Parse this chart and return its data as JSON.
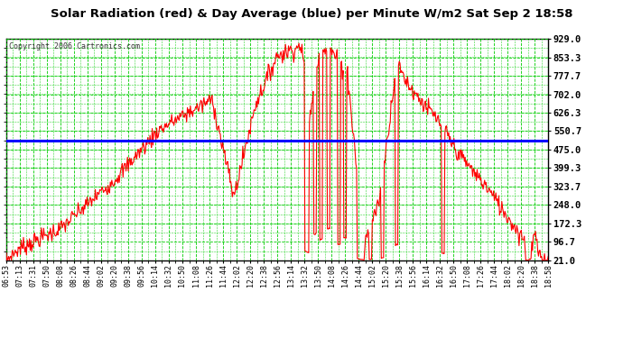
{
  "title": "Solar Radiation (red) & Day Average (blue) per Minute W/m2 Sat Sep 2 18:58",
  "copyright": "Copyright 2006 Cartronics.com",
  "background_color": "#ffffff",
  "plot_bg_color": "#ffffff",
  "grid_color": "#00cc00",
  "line_color": "#ff0000",
  "avg_line_color": "#0000ff",
  "avg_value": 510.0,
  "y_ticks": [
    21.0,
    96.7,
    172.3,
    248.0,
    323.7,
    399.3,
    475.0,
    550.7,
    626.3,
    702.0,
    777.7,
    853.3,
    929.0
  ],
  "x_labels": [
    "06:53",
    "07:13",
    "07:31",
    "07:50",
    "08:08",
    "08:26",
    "08:44",
    "09:02",
    "09:20",
    "09:38",
    "09:56",
    "10:14",
    "10:32",
    "10:50",
    "11:08",
    "11:26",
    "11:44",
    "12:02",
    "12:20",
    "12:38",
    "12:56",
    "13:14",
    "13:32",
    "13:50",
    "14:08",
    "14:26",
    "14:44",
    "15:02",
    "15:20",
    "15:38",
    "15:56",
    "16:14",
    "16:32",
    "16:50",
    "17:08",
    "17:26",
    "17:44",
    "18:02",
    "18:20",
    "18:38",
    "18:58"
  ],
  "ymin": 21.0,
  "ymax": 929.0
}
